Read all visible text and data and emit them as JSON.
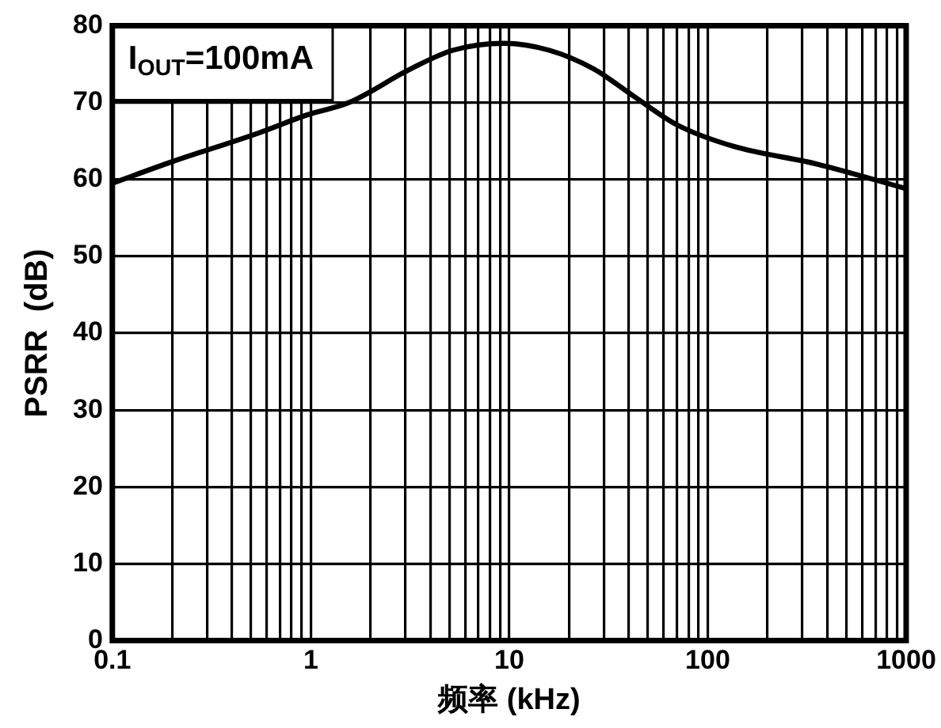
{
  "chart_data": {
    "type": "line",
    "xlabel": "频率 (kHz)",
    "ylabel": "PSRR  (dB)",
    "annotations": [
      "I$_{OUT}$=100mA"
    ],
    "x": [
      0.1,
      0.2,
      0.54,
      0.96,
      1.56,
      3.2,
      5.2,
      9.4,
      15.9,
      26.5,
      42,
      70,
      135,
      355,
      1000
    ],
    "series": [
      {
        "color": "#000000",
        "values": [
          59.5,
          62.3,
          66,
          68.4,
          70,
          74.4,
          76.8,
          77.7,
          76.8,
          74.4,
          70.9,
          67.1,
          64.3,
          62,
          58.8
        ]
      }
    ],
    "log": "x",
    "xlim": [
      0.1,
      1000
    ],
    "xticks": [
      0.1,
      {
        "value": 0.2,
        "label": null
      },
      {
        "value": 0.3,
        "label": null
      },
      {
        "value": 0.4,
        "label": null
      },
      {
        "value": 0.5,
        "label": null
      },
      {
        "value": 0.6,
        "label": null
      },
      {
        "value": 0.7,
        "label": null
      },
      {
        "value": 0.8,
        "label": null
      },
      {
        "value": 0.9,
        "label": null
      },
      1,
      {
        "value": 2,
        "label": null
      },
      {
        "value": 3,
        "label": null
      },
      {
        "value": 4,
        "label": null
      },
      {
        "value": 5,
        "label": null
      },
      {
        "value": 6,
        "label": null
      },
      {
        "value": 7,
        "label": null
      },
      {
        "value": 8,
        "label": null
      },
      {
        "value": 9,
        "label": null
      },
      10,
      {
        "value": 20,
        "label": null
      },
      {
        "value": 30,
        "label": null
      },
      {
        "value": 40,
        "label": null
      },
      {
        "value": 50,
        "label": null
      },
      {
        "value": 60,
        "label": null
      },
      {
        "value": 70,
        "label": null
      },
      {
        "value": 80,
        "label": null
      },
      {
        "value": 90,
        "label": null
      },
      100,
      {
        "value": 200,
        "label": null
      },
      {
        "value": 300,
        "label": null
      },
      {
        "value": 400,
        "label": null
      },
      {
        "value": 500,
        "label": null
      },
      {
        "value": 600,
        "label": null
      },
      {
        "value": 700,
        "label": null
      },
      {
        "value": 800,
        "label": null
      },
      {
        "value": 900,
        "label": null
      },
      1000
    ],
    "ylim": [
      0,
      80
    ],
    "yticks": [
      0,
      10,
      20,
      30,
      40,
      50,
      60,
      70,
      80
    ],
    "grid": true,
    "marker": "none",
    "line_style": "solid"
  }
}
